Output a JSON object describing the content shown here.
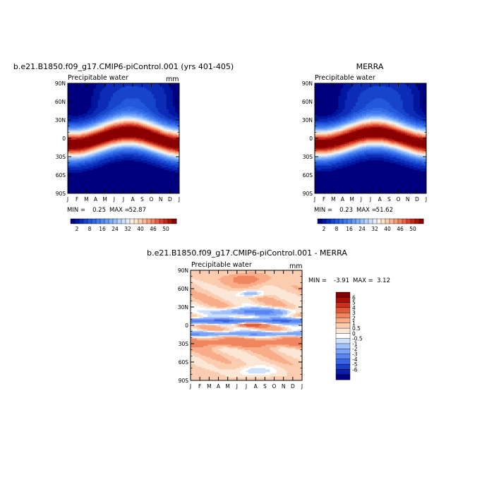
{
  "figure": "NCAR CESM diagnostics - zonal mean precipitable water seasonal cycle",
  "palette": {
    "pw": [
      "#00007f",
      "#00169f",
      "#0c2cb7",
      "#1744cc",
      "#2458dc",
      "#3068e6",
      "#3f79ee",
      "#5189f3",
      "#659bf6",
      "#7eadf8",
      "#97bff9",
      "#b3d1fa",
      "#cce0fb",
      "#e4edfb",
      "#fbf1e6",
      "#fde3cc",
      "#fdcfb1",
      "#fbb796",
      "#f89d7a",
      "#f1805f",
      "#e86046",
      "#d9402e",
      "#c42819",
      "#aa1208",
      "#8a0000"
    ],
    "diff": [
      "#00007f",
      "#0a1fa6",
      "#1c3dc8",
      "#3a63e6",
      "#5a84f2",
      "#7aa3f7",
      "#a2c1fa",
      "#cfe0fc",
      "#ffffff",
      "#fce6d6",
      "#fbcdb0",
      "#f8ad88",
      "#ef8660",
      "#e0593a",
      "#c8301c",
      "#a70f07",
      "#7f0000"
    ]
  },
  "chart_data": [
    {
      "type": "heatmap",
      "id": "model",
      "title": "b.e21.B1850.f09_g17.CMIP6-piControl.001 (yrs 401-405)",
      "subtitle": "Precipitable water",
      "units": "mm",
      "x": [
        "J",
        "F",
        "M",
        "A",
        "M",
        "J",
        "J",
        "A",
        "S",
        "O",
        "N",
        "D",
        "J"
      ],
      "y": [
        "90N",
        "60N",
        "30N",
        "0",
        "30S",
        "60S",
        "90S"
      ],
      "ylim": [
        -90,
        90
      ],
      "min_label": "MIN =",
      "min_value": "0.25",
      "max_label": "MAX =",
      "max_value": "52.87",
      "colorbar_ticks": [
        "2",
        "8",
        "16",
        "24",
        "32",
        "40",
        "46",
        "50"
      ],
      "levels": [
        1,
        2,
        4,
        6,
        8,
        10,
        12,
        14,
        16,
        18,
        20,
        22,
        24,
        26,
        28,
        30,
        32,
        34,
        36,
        38,
        40,
        42,
        44,
        46,
        48,
        50
      ],
      "field": {
        "kind": "pw",
        "amp": 50.5,
        "shift": 10,
        "width": 23.5
      }
    },
    {
      "type": "heatmap",
      "id": "obs",
      "title": "MERRA",
      "subtitle": "Precipitable water",
      "units": "",
      "x": [
        "J",
        "F",
        "M",
        "A",
        "M",
        "J",
        "J",
        "A",
        "S",
        "O",
        "N",
        "D",
        "J"
      ],
      "y": [
        "90N",
        "60N",
        "30N",
        "0",
        "30S",
        "60S",
        "90S"
      ],
      "ylim": [
        -90,
        90
      ],
      "min_label": "MIN =",
      "min_value": "0.23",
      "max_label": "MAX =",
      "max_value": "51.62",
      "colorbar_ticks": [
        "2",
        "8",
        "16",
        "24",
        "32",
        "40",
        "46",
        "50"
      ],
      "levels": [
        1,
        2,
        4,
        6,
        8,
        10,
        12,
        14,
        16,
        18,
        20,
        22,
        24,
        26,
        28,
        30,
        32,
        34,
        36,
        38,
        40,
        42,
        44,
        46,
        48,
        50
      ],
      "field": {
        "kind": "pw",
        "amp": 49.5,
        "shift": 9.5,
        "width": 23
      }
    },
    {
      "type": "heatmap",
      "id": "diff",
      "title": "b.e21.B1850.f09_g17.CMIP6-piControl.001 - MERRA",
      "subtitle": "Precipitable water",
      "units": "mm",
      "x": [
        "J",
        "F",
        "M",
        "A",
        "M",
        "J",
        "J",
        "A",
        "S",
        "O",
        "N",
        "D",
        "J"
      ],
      "y": [
        "90N",
        "60N",
        "30N",
        "0",
        "30S",
        "60S",
        "90S"
      ],
      "ylim": [
        -90,
        90
      ],
      "min_label": "MIN =",
      "min_value": "-3.91",
      "max_label": "MAX =",
      "max_value": "3.12",
      "colorbar_ticks": [
        "6",
        "5",
        "4",
        "3",
        "2",
        "1",
        "0.5",
        "0",
        "-0.5",
        "-1",
        "-2",
        "-3",
        "-4",
        "-5",
        "-6"
      ],
      "levels": [
        -6,
        -5,
        -4,
        -3,
        -2,
        -1,
        -0.5,
        -0.25,
        0,
        0.25,
        0.5,
        1,
        2,
        3,
        4,
        5,
        6
      ],
      "field": {
        "kind": "diff"
      }
    }
  ]
}
